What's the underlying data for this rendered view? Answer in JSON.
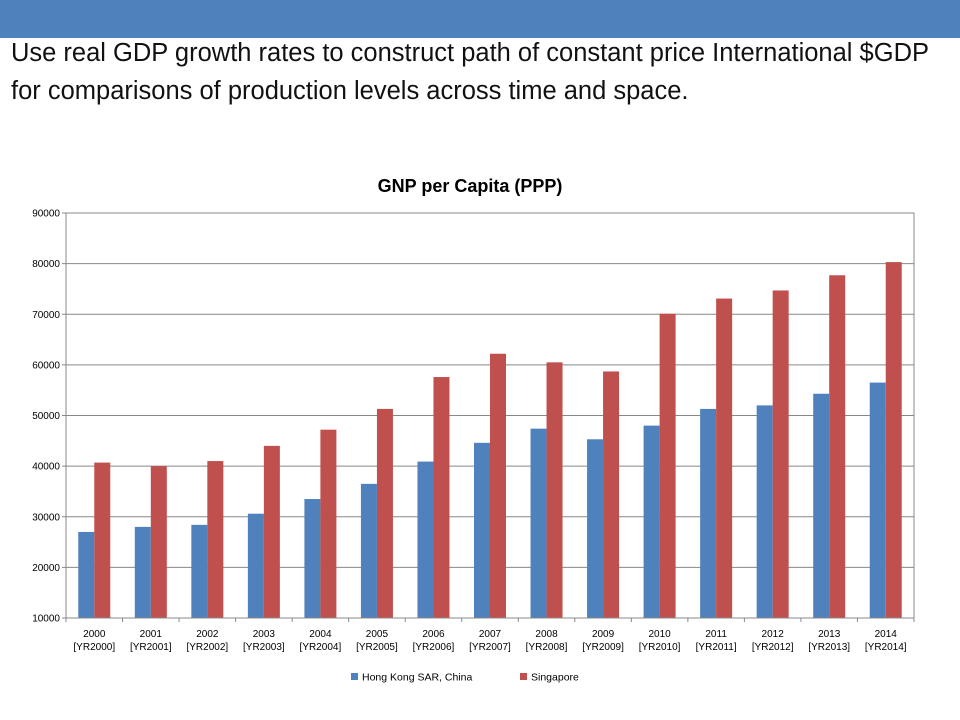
{
  "slide": {
    "body_text": "Use real GDP growth rates to construct path of constant price International $GDP for comparisons of production levels across time and space.",
    "accent_color": "#4f81bd"
  },
  "chart_data": {
    "type": "bar",
    "title": "GNP per Capita (PPP)",
    "xlabel": "",
    "ylabel": "",
    "ylim": [
      10000,
      90000
    ],
    "yticks": [
      10000,
      20000,
      30000,
      40000,
      50000,
      60000,
      70000,
      80000,
      90000
    ],
    "grid": true,
    "legend_position": "bottom",
    "categories": [
      [
        "2000",
        "[YR2000]"
      ],
      [
        "2001",
        "[YR2001]"
      ],
      [
        "2002",
        "[YR2002]"
      ],
      [
        "2003",
        "[YR2003]"
      ],
      [
        "2004",
        "[YR2004]"
      ],
      [
        "2005",
        "[YR2005]"
      ],
      [
        "2006",
        "[YR2006]"
      ],
      [
        "2007",
        "[YR2007]"
      ],
      [
        "2008",
        "[YR2008]"
      ],
      [
        "2009",
        "[YR2009]"
      ],
      [
        "2010",
        "[YR2010]"
      ],
      [
        "2011",
        "[YR2011]"
      ],
      [
        "2012",
        "[YR2012]"
      ],
      [
        "2013",
        "[YR2013]"
      ],
      [
        "2014",
        "[YR2014]"
      ]
    ],
    "series": [
      {
        "name": "Hong Kong SAR, China",
        "color": "#4f81bd",
        "values": [
          27000,
          28000,
          28400,
          30600,
          33500,
          36500,
          40900,
          44600,
          47400,
          45300,
          48000,
          51300,
          52000,
          54300,
          56500
        ]
      },
      {
        "name": "Singapore",
        "color": "#c0504d",
        "values": [
          40700,
          40000,
          41000,
          44000,
          47200,
          51300,
          57600,
          62200,
          60500,
          58700,
          70100,
          73100,
          74700,
          77700,
          80300
        ]
      }
    ]
  }
}
